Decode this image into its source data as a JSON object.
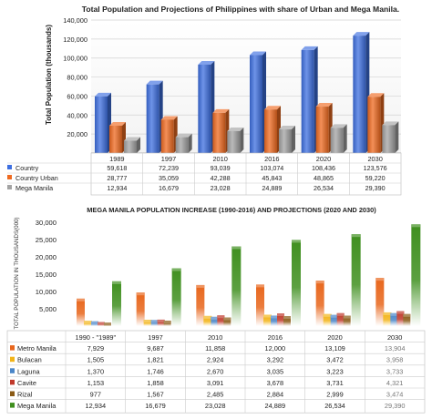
{
  "chart_data": [
    {
      "type": "bar",
      "title": "Total Population and Projections of Philippines  with share of Urban and Mega Manila.",
      "ylabel": "Total Population (thousands)",
      "ylim": [
        0,
        140000
      ],
      "yticks": [
        "20,000",
        "40,000",
        "60,000",
        "80,000",
        "100,000",
        "120,000",
        "140,000"
      ],
      "grid": true,
      "legend": "table-below",
      "categories": [
        "1989",
        "1997",
        "2010",
        "2016",
        "2020",
        "2030"
      ],
      "series": [
        {
          "name": "Country",
          "color": "#3d6fe0",
          "values": [
            59618,
            72239,
            93039,
            103074,
            108436,
            123576
          ],
          "labels": [
            "59,618",
            "72,239",
            "93,039",
            "103,074",
            "108,436",
            "123,576"
          ]
        },
        {
          "name": "Country Urban",
          "color": "#ef6a20",
          "values": [
            28777,
            35059,
            42288,
            45843,
            48865,
            59220
          ],
          "labels": [
            "28,777",
            "35,059",
            "42,288",
            "45,843",
            "48,865",
            "59,220"
          ]
        },
        {
          "name": "Mega Manila",
          "color": "#a3a3a3",
          "values": [
            12934,
            16679,
            23028,
            24889,
            26534,
            29390
          ],
          "labels": [
            "12,934",
            "16,679",
            "23,028",
            "24,889",
            "26,534",
            "29,390"
          ]
        }
      ]
    },
    {
      "type": "bar",
      "title": "MEGA MANILA POPULATION INCREASE (1990-2016) AND PROJECTIONS (2020 AND 2030)",
      "ylabel": "TOTAL POPULATION IN THOUSANDS(000)",
      "ylim": [
        0,
        30000
      ],
      "yticks": [
        "5,000",
        "10,000",
        "15,000",
        "20,000",
        "25,000",
        "30,000"
      ],
      "grid": false,
      "legend": "table-below",
      "categories": [
        "1990 - \"1989\"",
        "1997",
        "2010",
        "2016",
        "2020",
        "2030"
      ],
      "series": [
        {
          "name": "Metro Manila",
          "color": "#e8661c",
          "values": [
            7929,
            9687,
            11858,
            12000,
            13109,
            13904
          ],
          "labels": [
            "7,929",
            "9,687",
            "11,858",
            "12,000",
            "13,109",
            "13,904"
          ]
        },
        {
          "name": "Bulacan",
          "color": "#f2b418",
          "values": [
            1505,
            1821,
            2924,
            3292,
            3472,
            3958
          ],
          "labels": [
            "1,505",
            "1,821",
            "2,924",
            "3,292",
            "3,472",
            "3,958"
          ]
        },
        {
          "name": "Laguna",
          "color": "#4a86c8",
          "values": [
            1370,
            1746,
            2670,
            3035,
            3223,
            3733
          ],
          "labels": [
            "1,370",
            "1,746",
            "2,670",
            "3,035",
            "3,223",
            "3,733"
          ]
        },
        {
          "name": "Cavite",
          "color": "#c0392b",
          "values": [
            1153,
            1858,
            3091,
            3678,
            3731,
            4321
          ],
          "labels": [
            "1,153",
            "1,858",
            "3,091",
            "3,678",
            "3,731",
            "4,321"
          ]
        },
        {
          "name": "Rizal",
          "color": "#8a5a16",
          "values": [
            977,
            1567,
            2485,
            2884,
            2999,
            3474
          ],
          "labels": [
            "977",
            "1,567",
            "2,485",
            "2,884",
            "2,999",
            "3,474"
          ]
        },
        {
          "name": "Mega Manila",
          "color": "#3f8f1f",
          "values": [
            12934,
            16679,
            23028,
            24889,
            26534,
            29390
          ],
          "labels": [
            "12,934",
            "16,679",
            "23,028",
            "24,889",
            "26,534",
            "29,390"
          ]
        }
      ]
    }
  ]
}
